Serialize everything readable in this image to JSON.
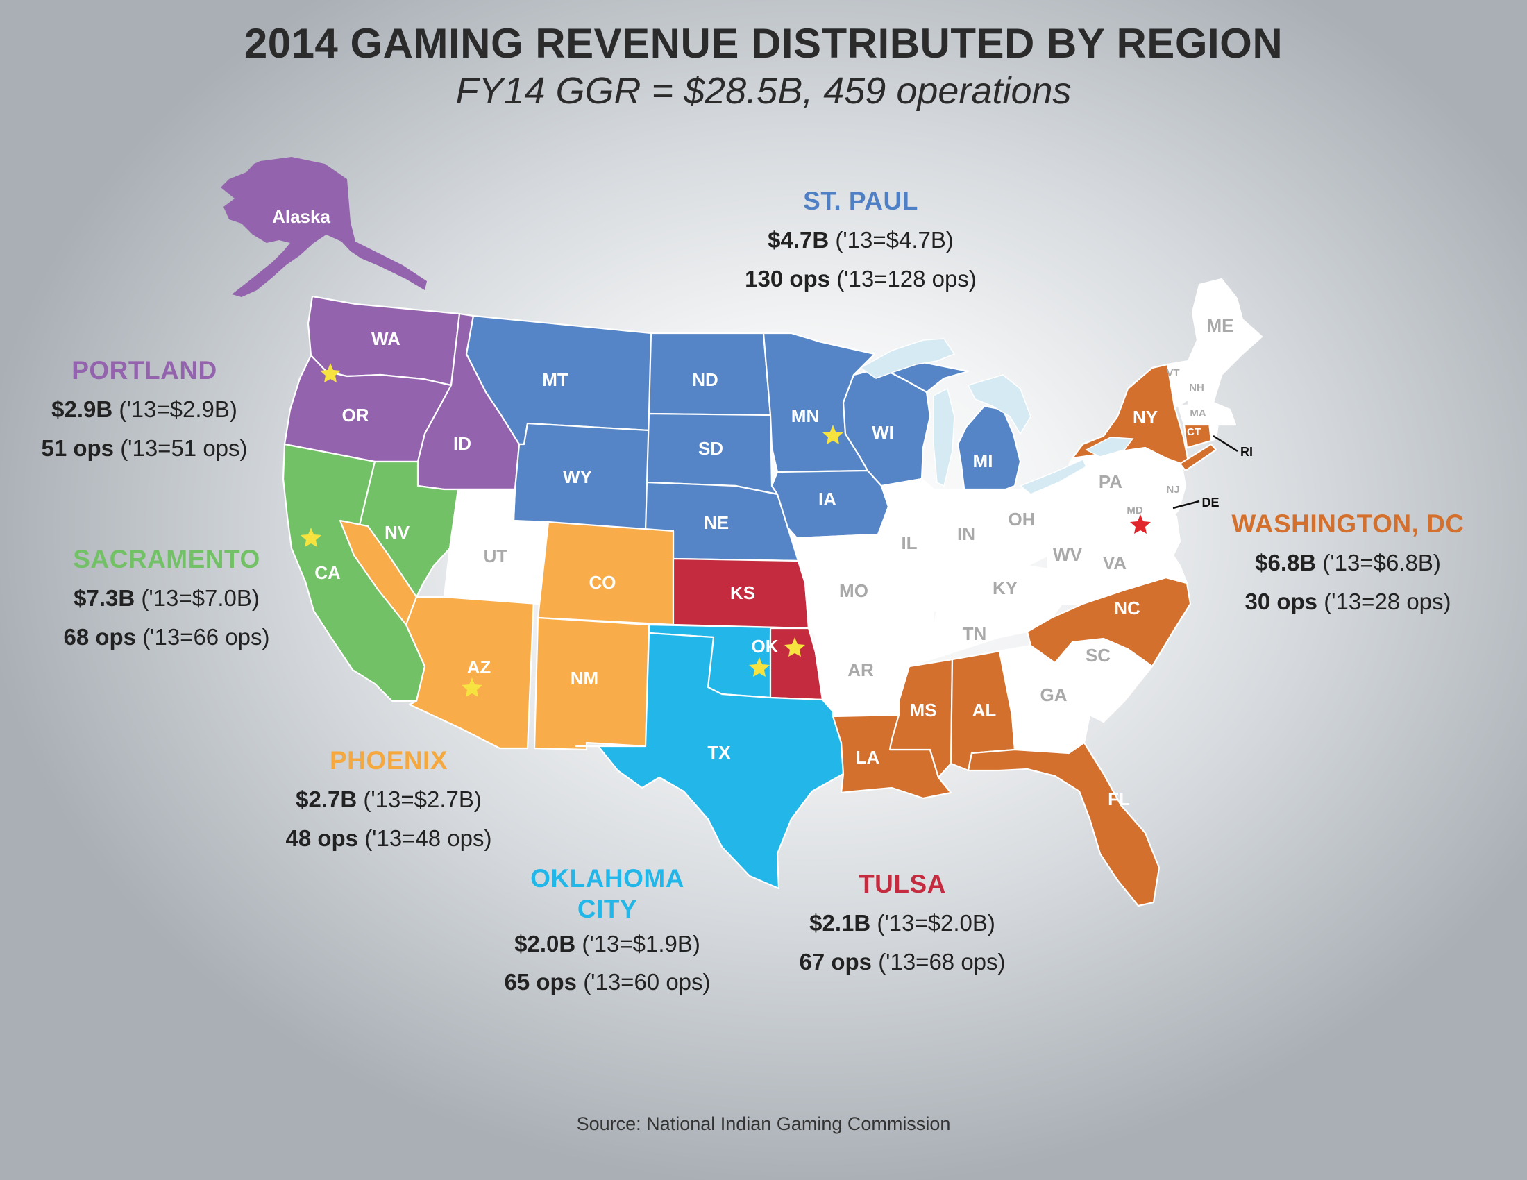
{
  "title": "2014 GAMING REVENUE DISTRIBUTED BY REGION",
  "subtitle": "FY14 GGR = $28.5B, 459 operations",
  "source": "Source: National Indian Gaming Commission",
  "colors": {
    "portland": "#9463ad",
    "sacramento": "#73c167",
    "phoenix": "#f8ac4a",
    "st_paul": "#5585c6",
    "oklahoma_city": "#22b7e8",
    "tulsa": "#c42b3e",
    "washington_dc": "#d3702e",
    "non_region": "#ffffff",
    "star_regional": "#f6e340",
    "star_hq": "#e0262c"
  },
  "regions": [
    {
      "key": "st_paul",
      "name": "ST. PAUL",
      "revenue": "$4.7B",
      "revenue_prior": "('13=$4.7B)",
      "ops": "130 ops",
      "ops_prior": "('13=128 ops)"
    },
    {
      "key": "portland",
      "name": "PORTLAND",
      "revenue": "$2.9B",
      "revenue_prior": "('13=$2.9B)",
      "ops": "51 ops",
      "ops_prior": "('13=51 ops)"
    },
    {
      "key": "sacramento",
      "name": "SACRAMENTO",
      "revenue": "$7.3B",
      "revenue_prior": "('13=$7.0B)",
      "ops": "68 ops",
      "ops_prior": "('13=66 ops)"
    },
    {
      "key": "phoenix",
      "name": "PHOENIX",
      "revenue": "$2.7B",
      "revenue_prior": "('13=$2.7B)",
      "ops": "48 ops",
      "ops_prior": "('13=48 ops)"
    },
    {
      "key": "oklahoma_city",
      "name": "OKLAHOMA CITY",
      "revenue": "$2.0B",
      "revenue_prior": "('13=$1.9B)",
      "ops": "65 ops",
      "ops_prior": "('13=60 ops)"
    },
    {
      "key": "tulsa",
      "name": "TULSA",
      "revenue": "$2.1B",
      "revenue_prior": "('13=$2.0B)",
      "ops": "67 ops",
      "ops_prior": "('13=68 ops)"
    },
    {
      "key": "washington_dc",
      "name": "WASHINGTON, DC",
      "revenue": "$6.8B",
      "revenue_prior": "('13=$6.8B)",
      "ops": "30 ops",
      "ops_prior": "('13=28 ops)"
    }
  ],
  "state_labels": {
    "alaska": "Alaska",
    "wa": "WA",
    "or": "OR",
    "id": "ID",
    "ca": "CA",
    "nv": "NV",
    "az": "AZ",
    "ut": "UT",
    "co": "CO",
    "nm": "NM",
    "mt": "MT",
    "wy": "WY",
    "nd": "ND",
    "sd": "SD",
    "ne": "NE",
    "mn": "MN",
    "ia": "IA",
    "wi": "WI",
    "mi": "MI",
    "ks": "KS",
    "ok": "OK",
    "tx": "TX",
    "mo": "MO",
    "ar": "AR",
    "la": "LA",
    "il": "IL",
    "in": "IN",
    "oh": "OH",
    "ky": "KY",
    "tn": "TN",
    "ms": "MS",
    "al": "AL",
    "ga": "GA",
    "fl": "FL",
    "sc": "SC",
    "nc": "NC",
    "va": "VA",
    "wv": "WV",
    "pa": "PA",
    "ny": "NY",
    "vt": "VT",
    "nh": "NH",
    "me": "ME",
    "ma": "MA",
    "ct": "CT",
    "ri": "RI",
    "nj": "NJ",
    "de": "DE",
    "md": "MD"
  }
}
